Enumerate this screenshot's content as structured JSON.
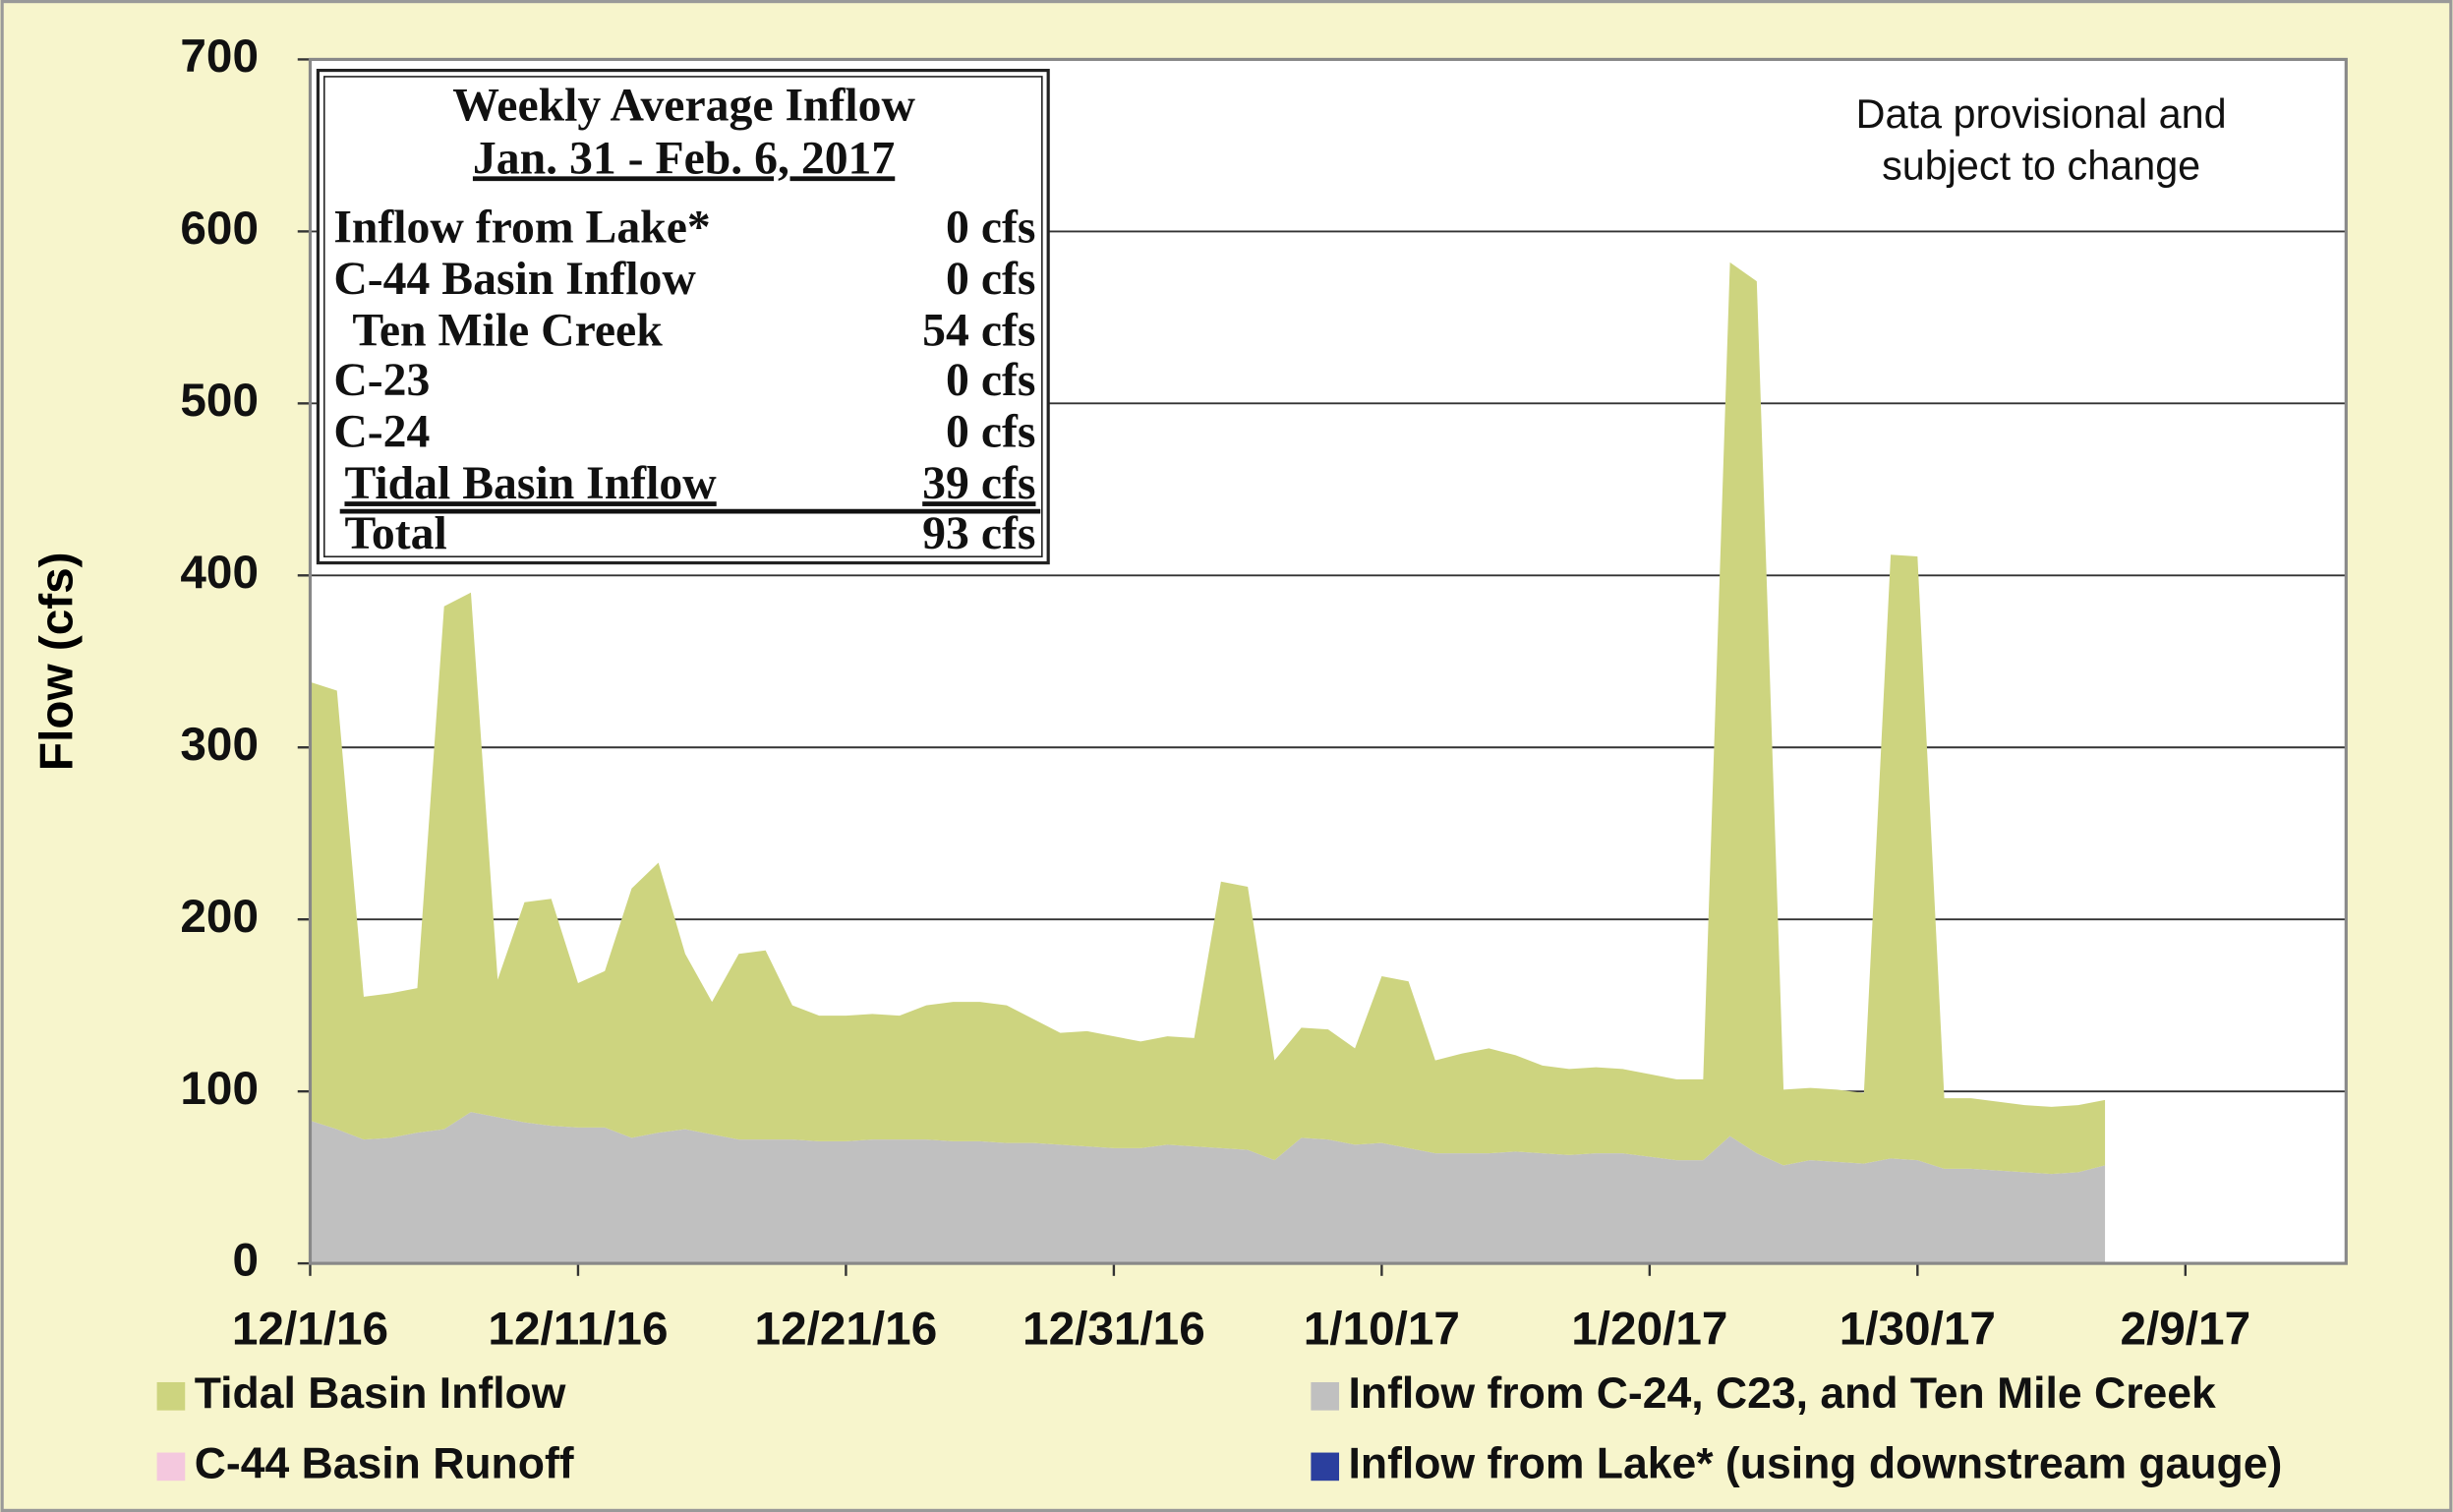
{
  "chart_data": {
    "type": "stacked_area",
    "y_label": "Flow (cfs)",
    "annotation": [
      "Data provisional and",
      "subject to change"
    ],
    "inset": {
      "title": "Weekly Average Inflow",
      "subtitle": "Jan. 31 - Feb. 6, 2017",
      "rows": [
        [
          "Inflow from Lake*",
          "0 cfs"
        ],
        [
          "C-44 Basin Inflow",
          "0 cfs"
        ],
        [
          "Ten Mile Creek",
          "54 cfs"
        ],
        [
          "C-23",
          "0 cfs"
        ],
        [
          "C-24",
          "0 cfs"
        ],
        [
          "Tidal Basin Inflow",
          "39 cfs"
        ],
        [
          "Total",
          "93 cfs"
        ]
      ]
    },
    "x": [
      "12/1/16",
      "12/2/16",
      "12/3/16",
      "12/4/16",
      "12/5/16",
      "12/6/16",
      "12/7/16",
      "12/8/16",
      "12/9/16",
      "12/10/16",
      "12/11/16",
      "12/12/16",
      "12/13/16",
      "12/14/16",
      "12/15/16",
      "12/16/16",
      "12/17/16",
      "12/18/16",
      "12/19/16",
      "12/20/16",
      "12/21/16",
      "12/22/16",
      "12/23/16",
      "12/24/16",
      "12/25/16",
      "12/26/16",
      "12/27/16",
      "12/28/16",
      "12/29/16",
      "12/30/16",
      "12/31/16",
      "1/1/17",
      "1/2/17",
      "1/3/17",
      "1/4/17",
      "1/5/17",
      "1/6/17",
      "1/7/17",
      "1/8/17",
      "1/9/17",
      "1/10/17",
      "1/11/17",
      "1/12/17",
      "1/13/17",
      "1/14/17",
      "1/15/17",
      "1/16/17",
      "1/17/17",
      "1/18/17",
      "1/19/17",
      "1/20/17",
      "1/21/17",
      "1/22/17",
      "1/23/17",
      "1/24/17",
      "1/25/17",
      "1/26/17",
      "1/27/17",
      "1/28/17",
      "1/29/17",
      "1/30/17",
      "1/31/17",
      "2/1/17",
      "2/2/17",
      "2/3/17",
      "2/4/17",
      "2/5/17",
      "2/6/17"
    ],
    "series": [
      {
        "name": "Tidal Basin Inflow",
        "color": "#cdd47f",
        "values": [
          255,
          255,
          83,
          84,
          84,
          304,
          302,
          80,
          128,
          132,
          84,
          91,
          145,
          157,
          102,
          77,
          108,
          110,
          78,
          73,
          73,
          73,
          72,
          78,
          81,
          81,
          80,
          72,
          65,
          67,
          65,
          62,
          63,
          63,
          155,
          153,
          58,
          64,
          64,
          56,
          97,
          97,
          54,
          58,
          61,
          56,
          51,
          50,
          50,
          49,
          48,
          47,
          47,
          508,
          507,
          44,
          42,
          42,
          41,
          351,
          351,
          41,
          41,
          40,
          39,
          39,
          39,
          38
        ]
      },
      {
        "name": "Inflow from  C-24, C23, and Ten Mile Creek",
        "color": "#c0c0c0",
        "values": [
          83,
          78,
          72,
          73,
          76,
          78,
          88,
          85,
          82,
          80,
          79,
          79,
          73,
          76,
          78,
          75,
          72,
          72,
          72,
          71,
          71,
          72,
          72,
          72,
          71,
          71,
          70,
          70,
          69,
          68,
          67,
          67,
          69,
          68,
          67,
          66,
          60,
          73,
          72,
          69,
          70,
          67,
          64,
          64,
          64,
          65,
          64,
          63,
          64,
          64,
          62,
          60,
          60,
          74,
          64,
          57,
          60,
          59,
          58,
          61,
          60,
          55,
          55,
          54,
          53,
          52,
          53,
          57
        ]
      },
      {
        "name": "C-44 Basin Runoff",
        "color": "#f4c8de",
        "values": [
          0,
          0,
          0,
          0,
          0,
          0,
          0,
          0,
          0,
          0,
          0,
          0,
          0,
          0,
          0,
          0,
          0,
          0,
          0,
          0,
          0,
          0,
          0,
          0,
          0,
          0,
          0,
          0,
          0,
          0,
          0,
          0,
          0,
          0,
          0,
          0,
          0,
          0,
          0,
          0,
          0,
          0,
          0,
          0,
          0,
          0,
          0,
          0,
          0,
          0,
          0,
          0,
          0,
          0,
          0,
          0,
          0,
          0,
          0,
          0,
          0,
          0,
          0,
          0,
          0,
          0,
          0,
          0
        ]
      },
      {
        "name": "Inflow from Lake* (using downstream gauge)",
        "color": "#2b3f9e",
        "values": [
          0,
          0,
          0,
          0,
          0,
          0,
          0,
          0,
          0,
          0,
          0,
          0,
          0,
          0,
          0,
          0,
          0,
          0,
          0,
          0,
          0,
          0,
          0,
          0,
          0,
          0,
          0,
          0,
          0,
          0,
          0,
          0,
          0,
          0,
          0,
          0,
          0,
          0,
          0,
          0,
          0,
          0,
          0,
          0,
          0,
          0,
          0,
          0,
          0,
          0,
          0,
          0,
          0,
          0,
          0,
          0,
          0,
          0,
          0,
          0,
          0,
          0,
          0,
          0,
          0,
          0,
          0,
          0
        ]
      }
    ],
    "xlim": [
      "12/1/16",
      "2/15/17"
    ],
    "xticks": [
      "12/1/16",
      "12/11/16",
      "12/21/16",
      "12/31/16",
      "1/10/17",
      "1/20/17",
      "1/30/17",
      "2/9/17"
    ],
    "ylim": [
      0,
      700
    ],
    "yticks": [
      0,
      100,
      200,
      300,
      400,
      500,
      600,
      700
    ],
    "grid": true
  }
}
